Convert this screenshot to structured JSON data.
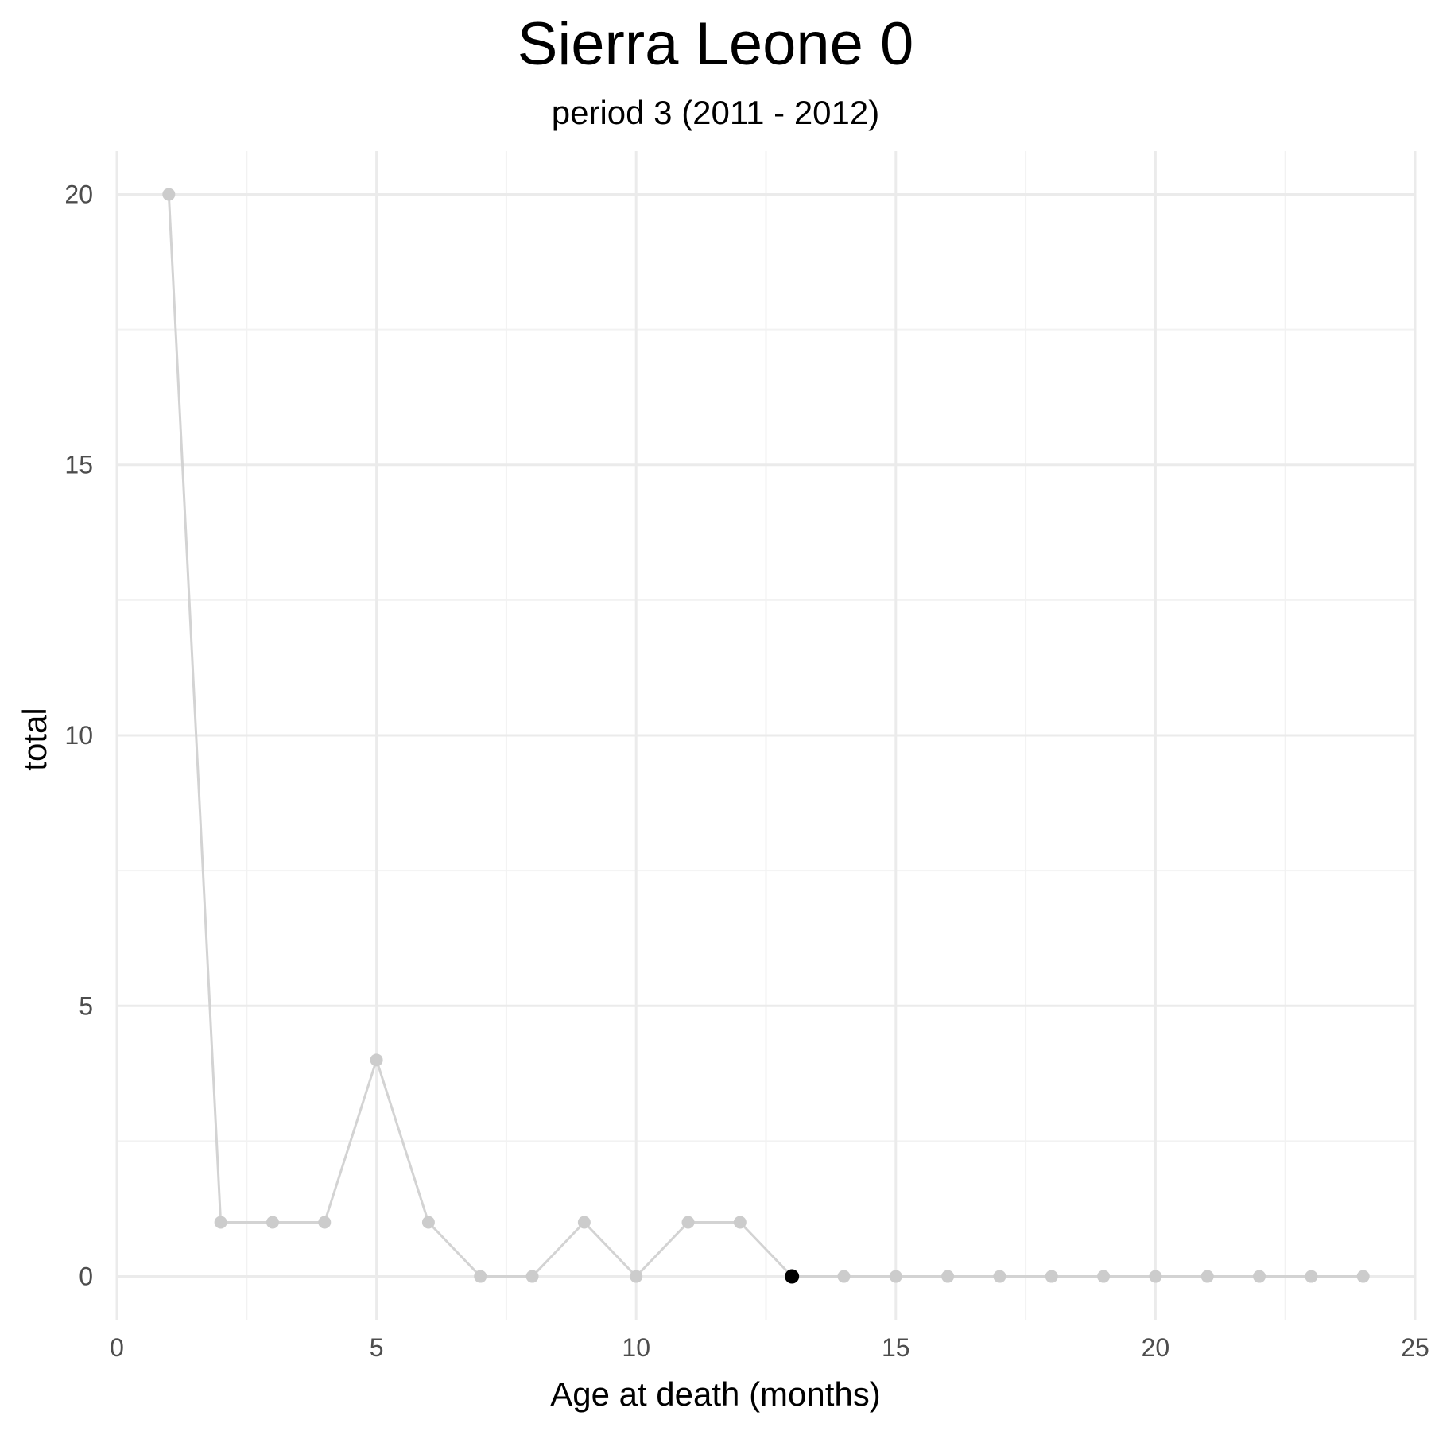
{
  "chart_data": {
    "type": "line",
    "title": "Sierra Leone 0",
    "subtitle": "period 3 (2011 - 2012)",
    "xlabel": "Age at death (months)",
    "ylabel": "total",
    "xlim": [
      0,
      25
    ],
    "ylim": [
      -0.8,
      20.8
    ],
    "x_ticks": [
      0,
      5,
      10,
      15,
      20,
      25
    ],
    "y_ticks": [
      0,
      5,
      10,
      15,
      20
    ],
    "grid": true,
    "series": [
      {
        "x": [
          1,
          2,
          3,
          4,
          5,
          6,
          7,
          8,
          9,
          10,
          11,
          12,
          13,
          14,
          15,
          16,
          17,
          18,
          19,
          20,
          21,
          22,
          23,
          24
        ],
        "values": [
          20,
          1,
          1,
          1,
          4,
          1,
          0,
          0,
          1,
          0,
          1,
          1,
          0,
          0,
          0,
          0,
          0,
          0,
          0,
          0,
          0,
          0,
          0,
          0
        ]
      }
    ],
    "highlight": {
      "x": 13,
      "y": 0
    },
    "colors": {
      "line": "#d3d3d3",
      "point": "#cccccc",
      "highlight": "#000000",
      "grid_major": "#ebebeb",
      "grid_minor": "#f2f2f2"
    }
  }
}
